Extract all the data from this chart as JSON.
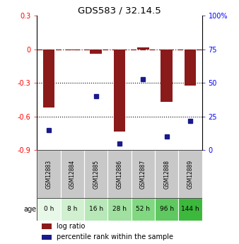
{
  "title": "GDS583 / 32.14.5",
  "samples": [
    "GSM12883",
    "GSM12884",
    "GSM12885",
    "GSM12886",
    "GSM12887",
    "GSM12888",
    "GSM12889"
  ],
  "ages": [
    "0 h",
    "8 h",
    "16 h",
    "28 h",
    "52 h",
    "96 h",
    "144 h"
  ],
  "log_ratio": [
    -0.52,
    -0.005,
    -0.04,
    -0.735,
    0.02,
    -0.47,
    -0.32
  ],
  "percentile_rank": [
    15,
    null,
    40,
    5,
    53,
    10,
    22
  ],
  "ylim_left": [
    -0.9,
    0.3
  ],
  "ylim_right": [
    0,
    100
  ],
  "bar_color": "#8B1A1A",
  "dot_color": "#1A1A8B",
  "age_bg_colors": [
    "#e8f8e8",
    "#d0f0d0",
    "#b8e8b8",
    "#a0e0a0",
    "#80d880",
    "#60c860",
    "#3cb83c"
  ],
  "sample_bg_color": "#c8c8c8",
  "dotted_lines_red": [
    0.0
  ],
  "dotted_lines_black": [
    -0.3,
    -0.6
  ],
  "right_yticks": [
    0,
    25,
    50,
    75,
    100
  ],
  "left_yticks": [
    -0.9,
    -0.6,
    -0.3,
    0,
    0.3
  ],
  "legend_log_ratio": "log ratio",
  "legend_percentile": "percentile rank within the sample",
  "age_label": "age",
  "bar_width": 0.5
}
